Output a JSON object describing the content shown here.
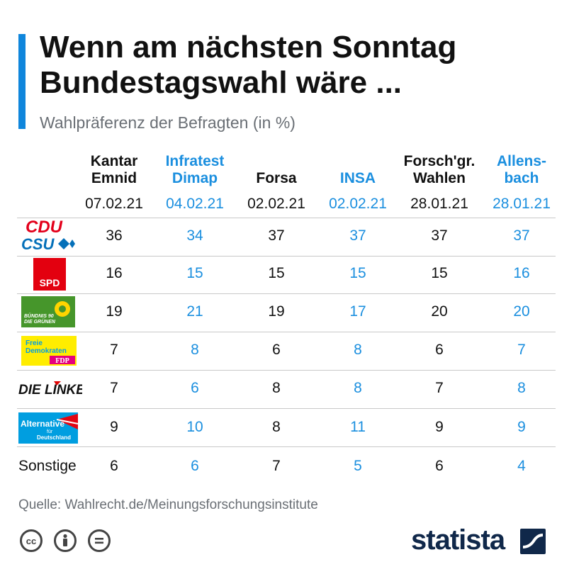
{
  "title_line1": "Wenn am nächsten Sonntag",
  "title_line2": "Bundestagswahl wäre ...",
  "subtitle": "Wahlpräferenz der Befragten (in %)",
  "source": "Quelle: Wahlrecht.de/Meinungsforschungsinstitute",
  "brand": "statista",
  "colors": {
    "accent": "#0f86dc",
    "blue_text": "#1b8fdf",
    "brand": "#10284a"
  },
  "chart_data": {
    "type": "table",
    "title": "Wenn am nächsten Sonntag Bundestagswahl wäre ...",
    "subtitle": "Wahlpräferenz der Befragten (in %)",
    "institutes": [
      {
        "line1": "Kantar",
        "line2": "Emnid",
        "date": "07.02.21",
        "color": "dark"
      },
      {
        "line1": "Infratest",
        "line2": "Dimap",
        "date": "04.02.21",
        "color": "blue"
      },
      {
        "line1": "",
        "line2": "Forsa",
        "date": "02.02.21",
        "color": "dark"
      },
      {
        "line1": "",
        "line2": "INSA",
        "date": "02.02.21",
        "color": "blue"
      },
      {
        "line1": "Forsch'gr.",
        "line2": "Wahlen",
        "date": "28.01.21",
        "color": "dark"
      },
      {
        "line1": "Allens-",
        "line2": "bach",
        "date": "28.01.21",
        "color": "blue"
      }
    ],
    "parties": [
      {
        "key": "cdu",
        "logo_text": [
          "CDU",
          "CSU"
        ],
        "values": [
          36,
          34,
          37,
          37,
          37,
          37
        ]
      },
      {
        "key": "spd",
        "logo_text": [
          "SPD"
        ],
        "values": [
          16,
          15,
          15,
          15,
          15,
          16
        ]
      },
      {
        "key": "gruene",
        "logo_text": [
          "BÜNDNIS 90",
          "DIE GRÜNEN"
        ],
        "values": [
          19,
          21,
          19,
          17,
          20,
          20
        ]
      },
      {
        "key": "fdp",
        "logo_text": [
          "Freie",
          "Demokraten",
          "FDP"
        ],
        "values": [
          7,
          8,
          6,
          8,
          6,
          7
        ]
      },
      {
        "key": "linke",
        "logo_text": [
          "DIE LINKE."
        ],
        "values": [
          7,
          6,
          8,
          8,
          7,
          8
        ]
      },
      {
        "key": "afd",
        "logo_text": [
          "Alternative",
          "für",
          "Deutschland"
        ],
        "values": [
          9,
          10,
          8,
          11,
          9,
          9
        ]
      },
      {
        "key": "sonstige",
        "label": "Sonstige",
        "values": [
          6,
          6,
          7,
          5,
          6,
          4
        ]
      }
    ]
  }
}
